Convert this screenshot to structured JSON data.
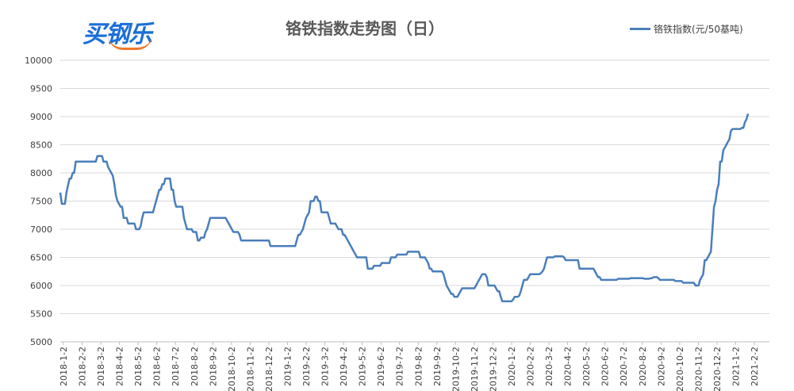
{
  "logo": {
    "text": "买钢乐"
  },
  "chart_data": {
    "type": "line",
    "title": "铬铁指数走势图（日）",
    "series": [
      {
        "name": "铬铁指数(元/50基吨)",
        "color": "#4a7ebb",
        "values": [
          7650,
          7450,
          7450,
          7450,
          7650,
          7780,
          7900,
          7900,
          8000,
          8000,
          8200,
          8200,
          8200,
          8200,
          8200,
          8200,
          8200,
          8200,
          8200,
          8200,
          8200,
          8200,
          8200,
          8200,
          8300,
          8300,
          8300,
          8300,
          8200,
          8200,
          8200,
          8100,
          8050,
          8000,
          7950,
          7800,
          7600,
          7500,
          7450,
          7400,
          7400,
          7200,
          7200,
          7200,
          7100,
          7100,
          7100,
          7100,
          7100,
          7000,
          7000,
          7000,
          7050,
          7200,
          7300,
          7300,
          7300,
          7300,
          7300,
          7300,
          7300,
          7400,
          7500,
          7600,
          7700,
          7700,
          7800,
          7800,
          7900,
          7900,
          7900,
          7900,
          7700,
          7700,
          7500,
          7400,
          7400,
          7400,
          7400,
          7400,
          7200,
          7100,
          7000,
          7000,
          7000,
          7000,
          6950,
          6950,
          6950,
          6800,
          6800,
          6850,
          6850,
          6850,
          6950,
          7000,
          7100,
          7200,
          7200,
          7200,
          7200,
          7200,
          7200,
          7200,
          7200,
          7200,
          7200,
          7200,
          7150,
          7100,
          7050,
          7000,
          6950,
          6950,
          6950,
          6950,
          6900,
          6800,
          6800,
          6800,
          6800,
          6800,
          6800,
          6800,
          6800,
          6800,
          6800,
          6800,
          6800,
          6800,
          6800,
          6800,
          6800,
          6800,
          6800,
          6800,
          6700,
          6700,
          6700,
          6700,
          6700,
          6700,
          6700,
          6700,
          6700,
          6700,
          6700,
          6700,
          6700,
          6700,
          6700,
          6700,
          6700,
          6800,
          6900,
          6900,
          6950,
          7000,
          7100,
          7200,
          7250,
          7300,
          7500,
          7500,
          7500,
          7580,
          7580,
          7500,
          7500,
          7300,
          7300,
          7300,
          7300,
          7300,
          7200,
          7100,
          7100,
          7100,
          7100,
          7050,
          7000,
          7000,
          7000,
          6900,
          6900,
          6850,
          6800,
          6750,
          6700,
          6650,
          6600,
          6550,
          6500,
          6500,
          6500,
          6500,
          6500,
          6500,
          6500,
          6300,
          6300,
          6300,
          6300,
          6350,
          6350,
          6350,
          6350,
          6350,
          6400,
          6400,
          6400,
          6400,
          6400,
          6400,
          6500,
          6500,
          6500,
          6500,
          6550,
          6550,
          6550,
          6550,
          6550,
          6550,
          6550,
          6600,
          6600,
          6600,
          6600,
          6600,
          6600,
          6600,
          6600,
          6500,
          6500,
          6500,
          6500,
          6450,
          6400,
          6300,
          6300,
          6250,
          6250,
          6250,
          6250,
          6250,
          6250,
          6250,
          6200,
          6100,
          6000,
          5950,
          5900,
          5850,
          5850,
          5800,
          5800,
          5800,
          5850,
          5900,
          5950,
          5950,
          5950,
          5950,
          5950,
          5950,
          5950,
          5950,
          5950,
          6000,
          6050,
          6100,
          6150,
          6200,
          6200,
          6200,
          6150,
          6000,
          6000,
          6000,
          6000,
          6000,
          5950,
          5900,
          5900,
          5800,
          5720,
          5720,
          5720,
          5720,
          5720,
          5720,
          5720,
          5750,
          5800,
          5800,
          5800,
          5820,
          5900,
          6000,
          6100,
          6100,
          6100,
          6150,
          6200,
          6200,
          6200,
          6200,
          6200,
          6200,
          6200,
          6220,
          6250,
          6300,
          6400,
          6500,
          6500,
          6500,
          6500,
          6500,
          6520,
          6520,
          6520,
          6520,
          6520,
          6520,
          6500,
          6450,
          6450,
          6450,
          6450,
          6450,
          6450,
          6450,
          6450,
          6450,
          6300,
          6300,
          6300,
          6300,
          6300,
          6300,
          6300,
          6300,
          6300,
          6300,
          6250,
          6200,
          6150,
          6150,
          6100,
          6100,
          6100,
          6100,
          6100,
          6100,
          6100,
          6100,
          6100,
          6100,
          6100,
          6120,
          6120,
          6120,
          6120,
          6120,
          6120,
          6120,
          6120,
          6130,
          6130,
          6130,
          6130,
          6130,
          6130,
          6130,
          6130,
          6130,
          6120,
          6120,
          6120,
          6120,
          6130,
          6130,
          6150,
          6150,
          6150,
          6130,
          6100,
          6100,
          6100,
          6100,
          6100,
          6100,
          6100,
          6100,
          6100,
          6100,
          6080,
          6080,
          6080,
          6080,
          6080,
          6050,
          6050,
          6050,
          6050,
          6050,
          6050,
          6050,
          6050,
          6000,
          6000,
          6000,
          6100,
          6150,
          6200,
          6450,
          6450,
          6500,
          6550,
          6600,
          7000,
          7400,
          7500,
          7700,
          7800,
          8200,
          8200,
          8400,
          8450,
          8500,
          8550,
          8600,
          8750,
          8780,
          8780,
          8780,
          8780,
          8780,
          8780,
          8800,
          8800,
          8900,
          8950,
          9050
        ]
      }
    ],
    "x_tick_labels": [
      "2018-1-2",
      "2018-2-2",
      "2018-3-2",
      "2018-4-2",
      "2018-5-2",
      "2018-6-2",
      "2018-7-2",
      "2018-8-2",
      "2018-9-2",
      "2018-10-2",
      "2018-11-2",
      "2018-12-2",
      "2019-1-2",
      "2019-2-2",
      "2019-3-2",
      "2019-4-2",
      "2019-5-2",
      "2019-6-2",
      "2019-7-2",
      "2019-8-2",
      "2019-9-2",
      "2019-10-2",
      "2019-11-2",
      "2019-12-2",
      "2020-1-2",
      "2020-2-2",
      "2020-3-2",
      "2020-4-2",
      "2020-5-2",
      "2020-6-2",
      "2020-7-2",
      "2020-8-2",
      "2020-9-2",
      "2020-10-2",
      "2020-11-2",
      "2020-12-2",
      "2021-1-2",
      "2021-2-2"
    ],
    "y_ticks": [
      5000,
      5500,
      6000,
      6500,
      7000,
      7500,
      8000,
      8500,
      9000,
      9500,
      10000
    ],
    "ylim": [
      5000,
      10000
    ],
    "grid": true,
    "legend_position": "top-right"
  }
}
